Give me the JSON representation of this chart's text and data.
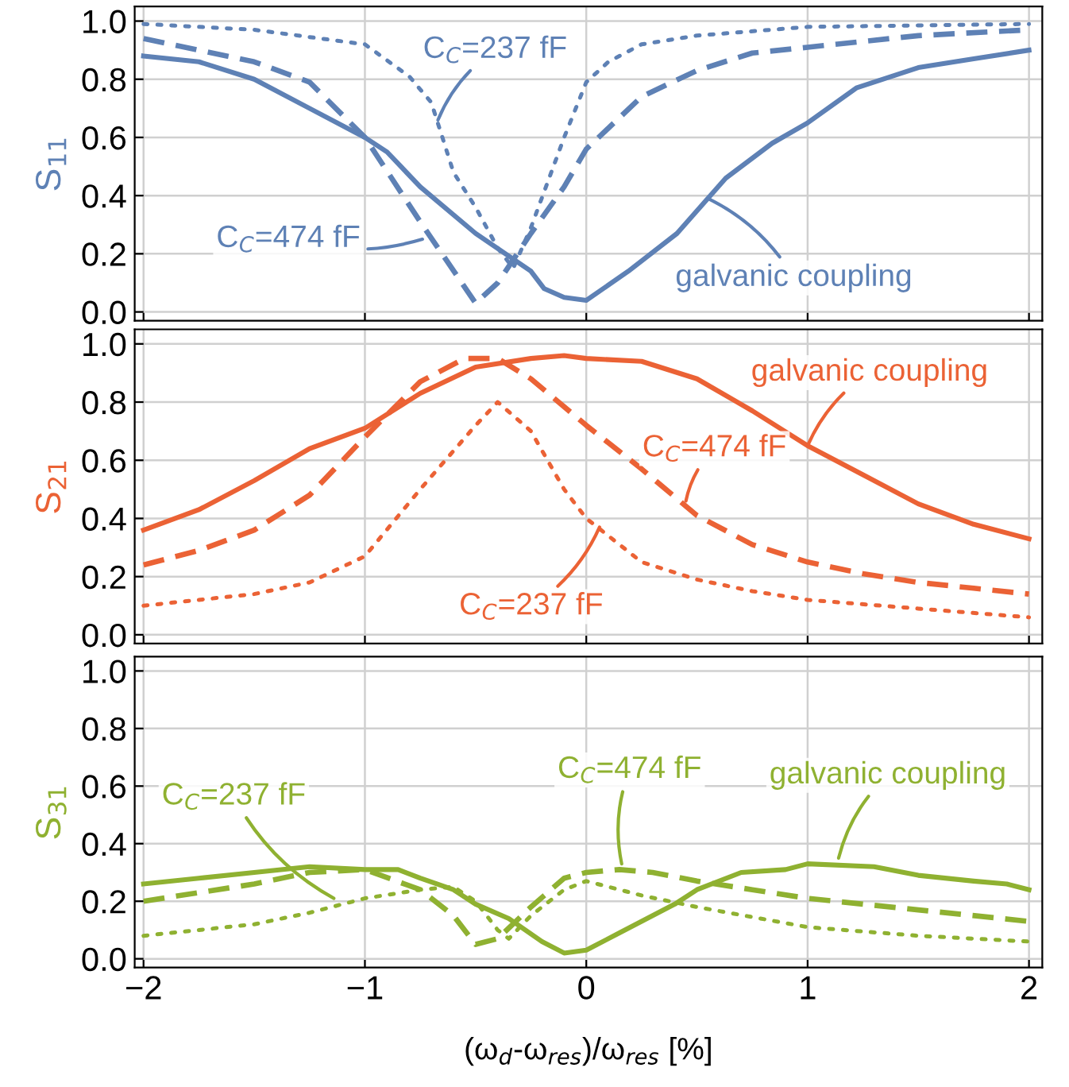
{
  "chart_data": [
    {
      "type": "line",
      "ylabel": "S$_{11}$",
      "xlim": [
        -2.04,
        2.06
      ],
      "ylim": [
        -0.03,
        1.05
      ],
      "xticks": [
        {
          "value": -2,
          "label": null
        },
        {
          "value": -1,
          "label": null
        },
        {
          "value": 0,
          "label": null
        },
        {
          "value": 1,
          "label": null
        },
        {
          "value": 2,
          "label": null
        }
      ],
      "yticks": [
        {
          "value": 0,
          "label": "0.0"
        },
        {
          "value": 0.2,
          "label": "0.2"
        },
        {
          "value": 0.4,
          "label": "0.4"
        },
        {
          "value": 0.6,
          "label": "0.6"
        },
        {
          "value": 0.8,
          "label": "0.8"
        },
        {
          "value": 1,
          "label": "1.0"
        }
      ],
      "grid": true,
      "tick_labels": "y",
      "series": [
        {
          "color": "#5e81b5",
          "line_style": "solid",
          "x": [
            -2,
            -1.75,
            -1.5,
            -1.25,
            -1,
            -0.9,
            -0.75,
            -0.5,
            -0.25,
            -0.19,
            -0.1,
            0,
            0.19,
            0.41,
            0.63,
            0.84,
            1,
            1.22,
            1.5,
            1.75,
            2
          ],
          "values": [
            0.88,
            0.86,
            0.8,
            0.7,
            0.6,
            0.55,
            0.43,
            0.27,
            0.14,
            0.08,
            0.05,
            0.04,
            0.14,
            0.27,
            0.46,
            0.58,
            0.65,
            0.77,
            0.84,
            0.87,
            0.9
          ]
        },
        {
          "color": "#5e81b5",
          "line_style": "dashed",
          "x": [
            -2,
            -1.5,
            -1.25,
            -1,
            -0.75,
            -0.5,
            -0.4,
            -0.25,
            -0.1,
            0,
            0.25,
            0.5,
            0.75,
            1,
            1.5,
            2
          ],
          "values": [
            0.94,
            0.86,
            0.79,
            0.6,
            0.31,
            0.03,
            0.1,
            0.27,
            0.43,
            0.56,
            0.74,
            0.83,
            0.89,
            0.91,
            0.95,
            0.97
          ]
        },
        {
          "color": "#5e81b5",
          "line_style": "dotted",
          "x": [
            -2,
            -1.5,
            -1,
            -0.8,
            -0.7,
            -0.6,
            -0.5,
            -0.4,
            -0.33,
            -0.25,
            -0.1,
            0,
            0.1,
            0.25,
            0.5,
            1,
            2
          ],
          "values": [
            0.99,
            0.97,
            0.92,
            0.81,
            0.72,
            0.48,
            0.36,
            0.22,
            0.15,
            0.29,
            0.6,
            0.79,
            0.86,
            0.92,
            0.95,
            0.98,
            0.99
          ]
        }
      ],
      "annotations": [
        {
          "text": "C$_{C}$=237 fF",
          "x": -0.67,
          "y": 0.66
        },
        {
          "text": "C$_{C}$=474 fF",
          "x": -0.74,
          "y": 0.25
        },
        {
          "text": "galvanic coupling",
          "x": 0.55,
          "y": 0.39
        }
      ]
    },
    {
      "type": "line",
      "ylabel": "S$_{21}$",
      "xlim": [
        -2.04,
        2.06
      ],
      "ylim": [
        -0.03,
        1.05
      ],
      "xticks": [
        {
          "value": -2,
          "label": null
        },
        {
          "value": -1,
          "label": null
        },
        {
          "value": 0,
          "label": null
        },
        {
          "value": 1,
          "label": null
        },
        {
          "value": 2,
          "label": null
        }
      ],
      "yticks": [
        {
          "value": 0,
          "label": "0.0"
        },
        {
          "value": 0.2,
          "label": "0.2"
        },
        {
          "value": 0.4,
          "label": "0.4"
        },
        {
          "value": 0.6,
          "label": "0.6"
        },
        {
          "value": 0.8,
          "label": "0.8"
        },
        {
          "value": 1,
          "label": "1.0"
        }
      ],
      "grid": true,
      "tick_labels": "y",
      "series": [
        {
          "color": "#eb6235",
          "line_style": "solid",
          "x": [
            -2,
            -1.75,
            -1.5,
            -1.25,
            -1,
            -0.75,
            -0.5,
            -0.25,
            -0.1,
            0,
            0.25,
            0.5,
            0.75,
            1,
            1.25,
            1.5,
            1.75,
            2
          ],
          "values": [
            0.36,
            0.43,
            0.53,
            0.64,
            0.71,
            0.83,
            0.92,
            0.95,
            0.96,
            0.95,
            0.94,
            0.88,
            0.77,
            0.65,
            0.55,
            0.45,
            0.38,
            0.33
          ]
        },
        {
          "color": "#eb6235",
          "line_style": "dashed",
          "x": [
            -2,
            -1.75,
            -1.5,
            -1.25,
            -1,
            -0.75,
            -0.55,
            -0.4,
            -0.25,
            0,
            0.25,
            0.5,
            0.75,
            1,
            1.25,
            1.5,
            1.75,
            2
          ],
          "values": [
            0.24,
            0.29,
            0.36,
            0.48,
            0.68,
            0.87,
            0.95,
            0.95,
            0.88,
            0.72,
            0.57,
            0.41,
            0.31,
            0.25,
            0.21,
            0.18,
            0.16,
            0.14
          ]
        },
        {
          "color": "#eb6235",
          "line_style": "dotted",
          "x": [
            -2,
            -1.5,
            -1.25,
            -1,
            -0.75,
            -0.5,
            -0.4,
            -0.25,
            -0.1,
            0,
            0.25,
            0.5,
            0.75,
            1,
            1.5,
            2
          ],
          "values": [
            0.1,
            0.14,
            0.18,
            0.27,
            0.5,
            0.72,
            0.8,
            0.7,
            0.5,
            0.4,
            0.25,
            0.19,
            0.15,
            0.12,
            0.09,
            0.06
          ]
        }
      ],
      "annotations": [
        {
          "text": "galvanic coupling",
          "x": 1.0,
          "y": 0.65
        },
        {
          "text": "C$_{C}$=474 fF",
          "x": 0.45,
          "y": 0.46
        },
        {
          "text": "C$_{C}$=237 fF",
          "x": 0.06,
          "y": 0.37
        }
      ]
    },
    {
      "type": "line",
      "ylabel": "S$_{31}$",
      "xlabel": "(ω$_{d}$-ω$_{res}$)/ω$_{res}$ [%]",
      "xlim": [
        -2.04,
        2.06
      ],
      "ylim": [
        -0.03,
        1.05
      ],
      "xticks": [
        {
          "value": -2,
          "label": "−2"
        },
        {
          "value": -1,
          "label": "−1"
        },
        0,
        1,
        2
      ],
      "yticks": [
        {
          "value": 0,
          "label": "0.0"
        },
        {
          "value": 0.2,
          "label": "0.2"
        },
        {
          "value": 0.4,
          "label": "0.4"
        },
        {
          "value": 0.6,
          "label": "0.6"
        },
        {
          "value": 0.8,
          "label": "0.8"
        },
        {
          "value": 1,
          "label": "1.0"
        }
      ],
      "grid": true,
      "series": [
        {
          "color": "#8fb131",
          "line_style": "solid",
          "x": [
            -2,
            -1.75,
            -1.5,
            -1.25,
            -1,
            -0.85,
            -0.75,
            -0.6,
            -0.5,
            -0.35,
            -0.2,
            -0.1,
            0,
            0.15,
            0.4,
            0.5,
            0.7,
            0.9,
            1,
            1.3,
            1.5,
            1.75,
            1.9,
            2
          ],
          "values": [
            0.26,
            0.28,
            0.3,
            0.32,
            0.31,
            0.31,
            0.28,
            0.24,
            0.19,
            0.14,
            0.06,
            0.02,
            0.03,
            0.09,
            0.19,
            0.24,
            0.3,
            0.31,
            0.33,
            0.32,
            0.29,
            0.27,
            0.26,
            0.24
          ]
        },
        {
          "color": "#8fb131",
          "line_style": "dashed",
          "x": [
            -2,
            -1.5,
            -1.25,
            -1,
            -0.75,
            -0.6,
            -0.5,
            -0.4,
            -0.25,
            -0.1,
            0,
            0.15,
            0.3,
            0.5,
            0.75,
            1,
            1.5,
            2
          ],
          "values": [
            0.2,
            0.26,
            0.3,
            0.31,
            0.24,
            0.15,
            0.05,
            0.07,
            0.18,
            0.28,
            0.3,
            0.31,
            0.3,
            0.27,
            0.24,
            0.21,
            0.17,
            0.13
          ]
        },
        {
          "color": "#8fb131",
          "line_style": "dotted",
          "x": [
            -2,
            -1.5,
            -1.25,
            -1,
            -0.75,
            -0.6,
            -0.5,
            -0.4,
            -0.35,
            -0.25,
            -0.1,
            0,
            0.25,
            0.5,
            1,
            1.5,
            2
          ],
          "values": [
            0.08,
            0.12,
            0.16,
            0.21,
            0.24,
            0.25,
            0.2,
            0.1,
            0.07,
            0.15,
            0.24,
            0.27,
            0.22,
            0.18,
            0.11,
            0.08,
            0.06
          ]
        }
      ],
      "annotations": [
        {
          "text": "C$_{C}$=237 fF",
          "x": -1.14,
          "y": 0.21
        },
        {
          "text": "C$_{C}$=474 fF",
          "x": 0.16,
          "y": 0.33
        },
        {
          "text": "galvanic coupling",
          "x": 1.14,
          "y": 0.35
        }
      ]
    }
  ]
}
